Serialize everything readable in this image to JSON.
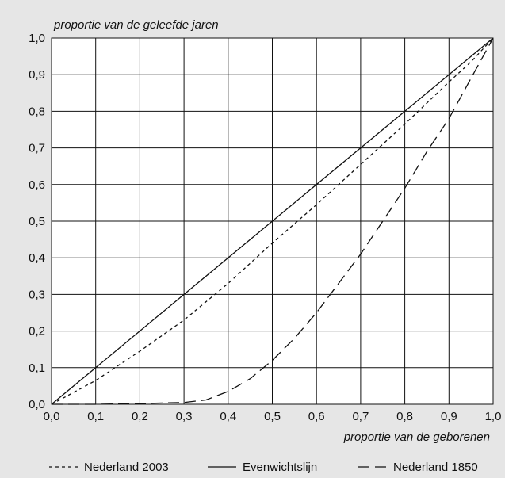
{
  "chart_data": {
    "type": "line",
    "ylabel": "proportie van de geleefde jaren",
    "xlabel": "proportie van de geborenen",
    "xlim": [
      0,
      1
    ],
    "ylim": [
      0,
      1
    ],
    "grid": true,
    "legend_position": "bottom",
    "x_ticks": [
      "0,0",
      "0,1",
      "0,2",
      "0,3",
      "0,4",
      "0,5",
      "0,6",
      "0,7",
      "0,8",
      "0,9",
      "1,0"
    ],
    "y_ticks": [
      "0,0",
      "0,1",
      "0,2",
      "0,3",
      "0,4",
      "0,5",
      "0,6",
      "0,7",
      "0,8",
      "0,9",
      "1,0"
    ],
    "series": [
      {
        "name": "Nederland 2003",
        "style": "short-dash",
        "x": [
          0.0,
          0.1,
          0.2,
          0.3,
          0.4,
          0.5,
          0.6,
          0.7,
          0.8,
          0.9,
          0.95,
          1.0
        ],
        "y": [
          0.0,
          0.065,
          0.145,
          0.23,
          0.33,
          0.44,
          0.545,
          0.655,
          0.765,
          0.88,
          0.935,
          1.0
        ]
      },
      {
        "name": "Evenwichtslijn",
        "style": "solid",
        "x": [
          0.0,
          1.0
        ],
        "y": [
          0.0,
          1.0
        ]
      },
      {
        "name": "Nederland 1850",
        "style": "long-dash",
        "x": [
          0.0,
          0.1,
          0.2,
          0.3,
          0.35,
          0.4,
          0.45,
          0.5,
          0.55,
          0.6,
          0.65,
          0.7,
          0.75,
          0.8,
          0.85,
          0.9,
          0.95,
          1.0
        ],
        "y": [
          0.0,
          0.0,
          0.002,
          0.005,
          0.012,
          0.035,
          0.07,
          0.12,
          0.18,
          0.25,
          0.33,
          0.41,
          0.5,
          0.59,
          0.69,
          0.78,
          0.89,
          1.0
        ]
      }
    ]
  },
  "legend": {
    "items": [
      {
        "label": "Nederland 2003",
        "style": "short-dash"
      },
      {
        "label": "Evenwichtslijn",
        "style": "solid"
      },
      {
        "label": "Nederland 1850",
        "style": "long-dash"
      }
    ]
  },
  "colors": {
    "background": "#e6e6e6",
    "plot_area": "#ffffff",
    "lines": "#111111",
    "grid": "#111111"
  }
}
